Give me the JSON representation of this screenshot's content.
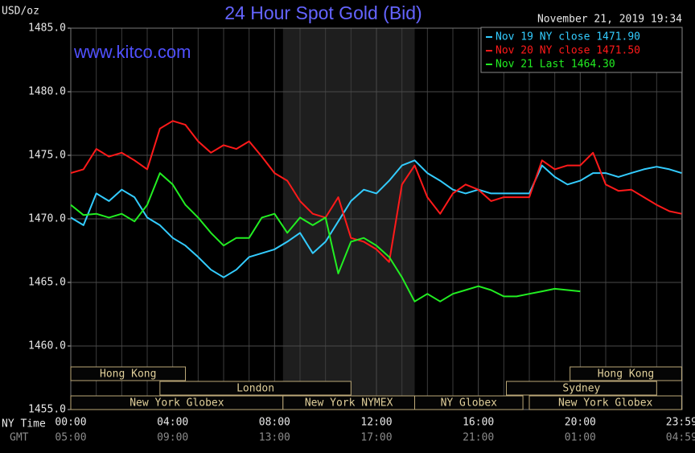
{
  "chart_data": {
    "type": "line",
    "title": "24 Hour Spot Gold (Bid)",
    "watermark": "www.kitco.com",
    "timestamp": "November 21, 2019 19:34",
    "y_label": "USD/oz",
    "x_label": "NY Time",
    "x2_label": "GMT",
    "x": [
      0,
      0.5,
      1,
      1.5,
      2,
      2.5,
      3,
      3.5,
      4,
      4.5,
      5,
      5.5,
      6,
      6.5,
      7,
      7.5,
      8,
      8.5,
      9,
      9.5,
      10,
      10.5,
      11,
      11.5,
      12,
      12.5,
      13,
      13.5,
      14,
      14.5,
      15,
      15.5,
      16,
      16.5,
      17,
      17.5,
      18,
      18.5,
      19,
      19.5,
      20,
      20.5,
      21,
      21.5,
      22,
      22.5,
      23,
      23.5,
      23.98
    ],
    "series": [
      {
        "name": "Nov 19 NY close 1471.90",
        "color": "#33ccff",
        "values": [
          1470.1,
          1469.5,
          1472.0,
          1471.4,
          1472.3,
          1471.7,
          1470.1,
          1469.5,
          1468.5,
          1467.9,
          1467.0,
          1466.0,
          1465.4,
          1466.0,
          1467.0,
          1467.3,
          1467.6,
          1468.2,
          1468.9,
          1467.3,
          1468.2,
          1469.8,
          1471.4,
          1472.3,
          1472.0,
          1473.0,
          1474.2,
          1474.6,
          1473.6,
          1473.0,
          1472.3,
          1472.0,
          1472.3,
          1472.0,
          1472.0,
          1472.0,
          1472.0,
          1474.2,
          1473.3,
          1472.7,
          1473.0,
          1473.6,
          1473.6,
          1473.3,
          1473.6,
          1473.9,
          1474.1,
          1473.9,
          1473.6
        ]
      },
      {
        "name": "Nov 20 NY close 1471.50",
        "color": "#ff1a1a",
        "values": [
          1473.6,
          1473.9,
          1475.5,
          1474.9,
          1475.2,
          1474.6,
          1473.9,
          1477.1,
          1477.7,
          1477.4,
          1476.1,
          1475.2,
          1475.8,
          1475.5,
          1476.1,
          1474.9,
          1473.6,
          1473.0,
          1471.4,
          1470.4,
          1470.1,
          1471.7,
          1468.5,
          1468.2,
          1467.6,
          1466.6,
          1472.7,
          1474.2,
          1471.7,
          1470.4,
          1472.0,
          1472.7,
          1472.3,
          1471.4,
          1471.7,
          1471.7,
          1471.7,
          1474.6,
          1473.9,
          1474.2,
          1474.2,
          1475.2,
          1472.7,
          1472.2,
          1472.3,
          1471.7,
          1471.1,
          1470.6,
          1470.4
        ]
      },
      {
        "name": "Nov 21 Last 1464.30",
        "color": "#22ee22",
        "values": [
          1471.1,
          1470.3,
          1470.4,
          1470.1,
          1470.4,
          1469.8,
          1471.1,
          1473.6,
          1472.7,
          1471.1,
          1470.1,
          1468.9,
          1467.9,
          1468.5,
          1468.5,
          1470.1,
          1470.4,
          1468.9,
          1470.1,
          1469.5,
          1470.1,
          1465.7,
          1468.2,
          1468.5,
          1467.9,
          1467.0,
          1465.4,
          1463.5,
          1464.1,
          1463.5,
          1464.1,
          1464.4,
          1464.7,
          1464.4,
          1463.9,
          1463.9,
          1464.1,
          1464.3,
          1464.5,
          1464.4,
          1464.3,
          null,
          null,
          null,
          null,
          null,
          null,
          null,
          null
        ]
      }
    ],
    "xlim": [
      0,
      24
    ],
    "xticks": [
      {
        "value": 0,
        "label": "00:00"
      },
      {
        "value": 4,
        "label": "04:00"
      },
      {
        "value": 8,
        "label": "08:00"
      },
      {
        "value": 12,
        "label": "12:00"
      },
      {
        "value": 16,
        "label": "16:00"
      },
      {
        "value": 20,
        "label": "20:00"
      },
      {
        "value": 23.98,
        "label": "23:59"
      }
    ],
    "x2ticks": [
      {
        "value": 0,
        "label": "05:00"
      },
      {
        "value": 4,
        "label": "09:00"
      },
      {
        "value": 8,
        "label": "13:00"
      },
      {
        "value": 12,
        "label": "17:00"
      },
      {
        "value": 16,
        "label": "21:00"
      },
      {
        "value": 20,
        "label": "01:00"
      },
      {
        "value": 23.98,
        "label": "04:59"
      }
    ],
    "x_minor_grid": [
      1,
      2,
      3,
      5,
      6,
      7,
      9,
      10,
      11,
      13,
      14,
      15,
      17,
      18,
      19,
      21,
      22,
      23
    ],
    "ylim": [
      1455,
      1485
    ],
    "yticks": [
      {
        "value": 1455,
        "label": "1455.0"
      },
      {
        "value": 1460,
        "label": "1460.0"
      },
      {
        "value": 1465,
        "label": "1465.0"
      },
      {
        "value": 1470,
        "label": "1470.0"
      },
      {
        "value": 1475,
        "label": "1475.0"
      },
      {
        "value": 1480,
        "label": "1480.0"
      },
      {
        "value": 1485,
        "label": "1485.0"
      }
    ],
    "grid": true,
    "shaded_span": [
      8.33,
      13.5
    ],
    "session_rows": [
      [
        {
          "label": "Hong Kong",
          "start": 0,
          "end": 4.5
        },
        {
          "label": "Hong Kong",
          "start": 19.6,
          "end": 23.98
        }
      ],
      [
        {
          "label": "London",
          "start": 3.5,
          "end": 11.0
        },
        {
          "label": "Sydney",
          "start": 17.1,
          "end": 23.0
        }
      ],
      [
        {
          "label": "New York Globex",
          "start": 0,
          "end": 8.33
        },
        {
          "label": "New York NYMEX",
          "start": 8.33,
          "end": 13.5
        },
        {
          "label": "NY Globex",
          "start": 13.5,
          "end": 17.75
        },
        {
          "label": "New York Globex",
          "start": 18.0,
          "end": 23.98
        }
      ]
    ]
  }
}
